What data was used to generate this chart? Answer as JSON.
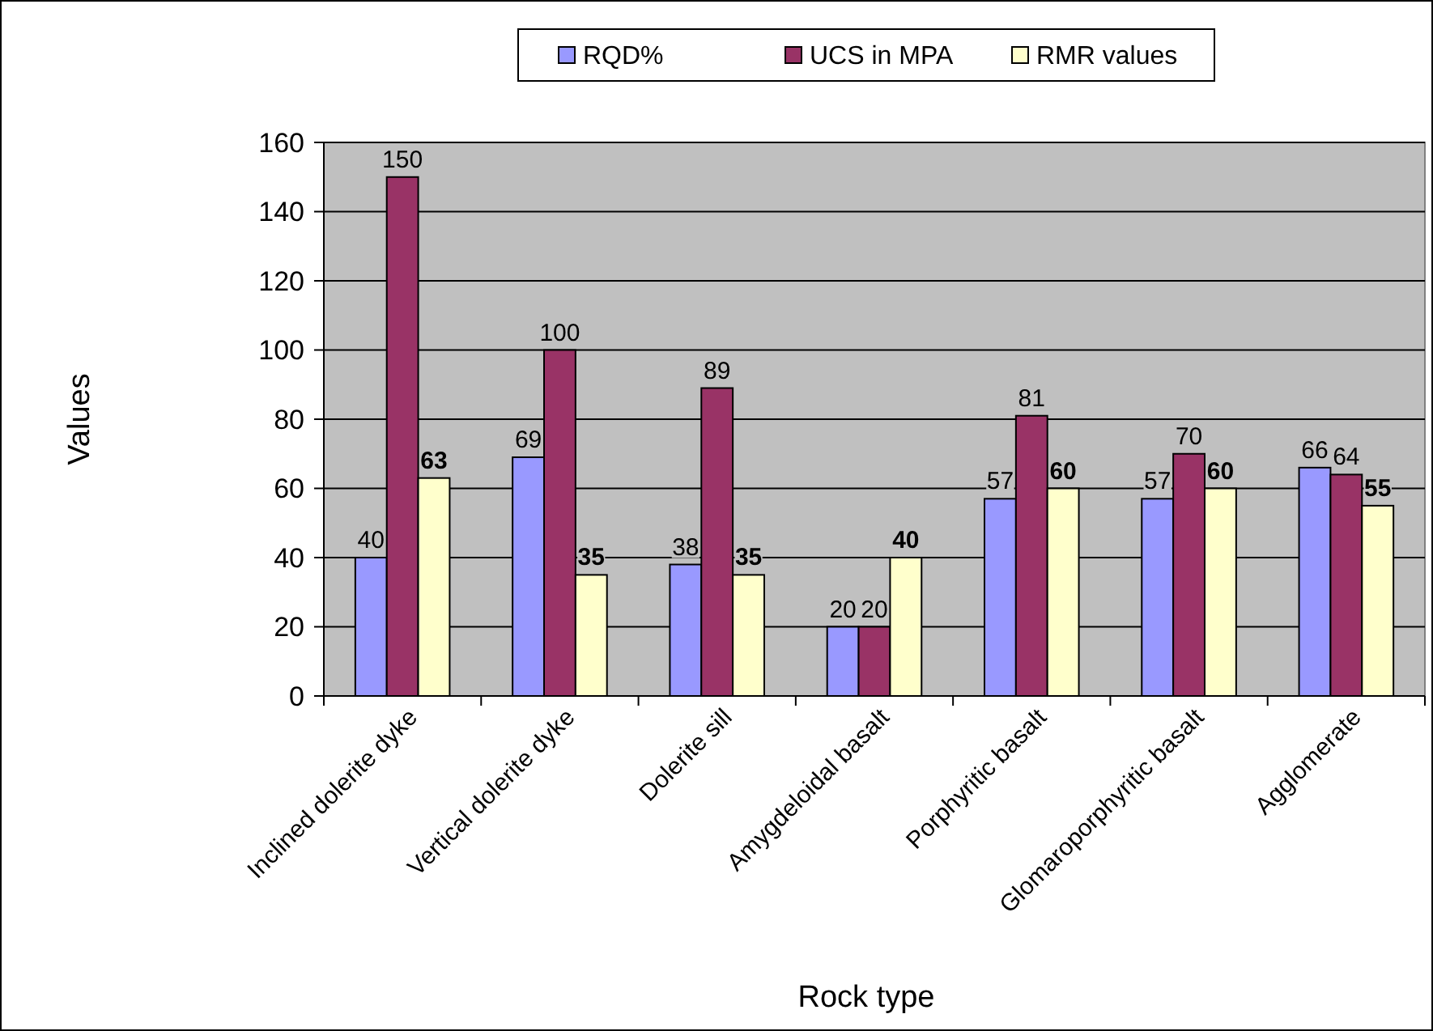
{
  "chart_data": {
    "type": "bar",
    "xlabel": "Rock type",
    "ylabel": "Values",
    "categories": [
      "Inclined dolerite dyke",
      "Vertical dolerite dyke",
      "Dolerite sill",
      "Amygdeloidal basalt",
      "Porphyritic basalt",
      "Glomaroporphyritic basalt",
      "Agglomerate"
    ],
    "series": [
      {
        "name": "RQD%",
        "color": "#9999ff",
        "values": [
          40,
          69,
          38,
          20,
          57,
          57,
          66
        ]
      },
      {
        "name": "UCS in MPA",
        "color": "#993366",
        "values": [
          150,
          100,
          89,
          20,
          81,
          70,
          64
        ]
      },
      {
        "name": "RMR values",
        "color": "#ffffcc",
        "values": [
          63,
          35,
          35,
          40,
          60,
          60,
          55
        ]
      }
    ],
    "ylim": [
      0,
      160
    ],
    "yticks": [
      0,
      20,
      40,
      60,
      80,
      100,
      120,
      140,
      160
    ],
    "grid": "y",
    "legend": "top",
    "data_labels": true
  }
}
